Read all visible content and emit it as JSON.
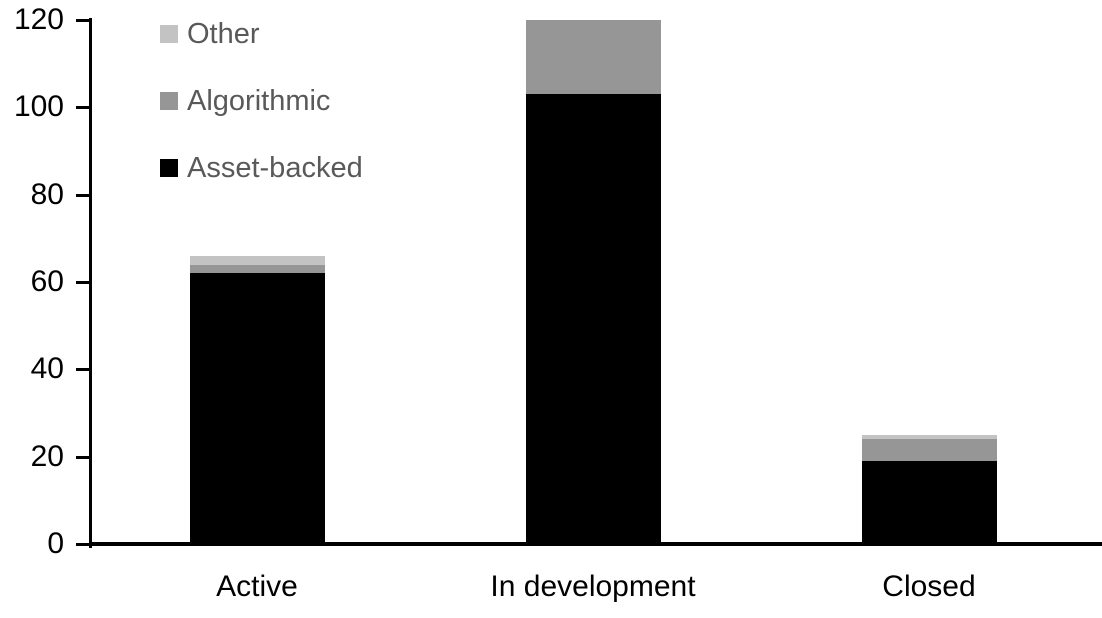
{
  "chart_data": {
    "type": "bar",
    "subtype": "stacked-vertical",
    "title": "",
    "xlabel": "",
    "ylabel": "",
    "categories": [
      "Active",
      "In development",
      "Closed"
    ],
    "series": [
      {
        "name": "Asset-backed",
        "color": "#000000",
        "values": [
          62,
          103,
          19
        ]
      },
      {
        "name": "Algorithmic",
        "color": "#969696",
        "values": [
          2,
          17,
          5
        ]
      },
      {
        "name": "Other",
        "color": "#c3c3c3",
        "values": [
          2,
          0,
          1
        ]
      }
    ],
    "totals": [
      66,
      120,
      25
    ],
    "ylim": [
      0,
      120
    ],
    "ytick_step": 20,
    "ytick_labels": [
      "0",
      "20",
      "40",
      "60",
      "80",
      "100",
      "120"
    ],
    "grid": "off",
    "legend_position": "top-left",
    "legend_order": [
      "Other",
      "Algorithmic",
      "Asset-backed"
    ]
  },
  "colors": {
    "background": "#ffffff",
    "axis": "#000000",
    "axis_tick_text": "#000000",
    "category_text": "#000000",
    "legend_text": "#595959"
  }
}
